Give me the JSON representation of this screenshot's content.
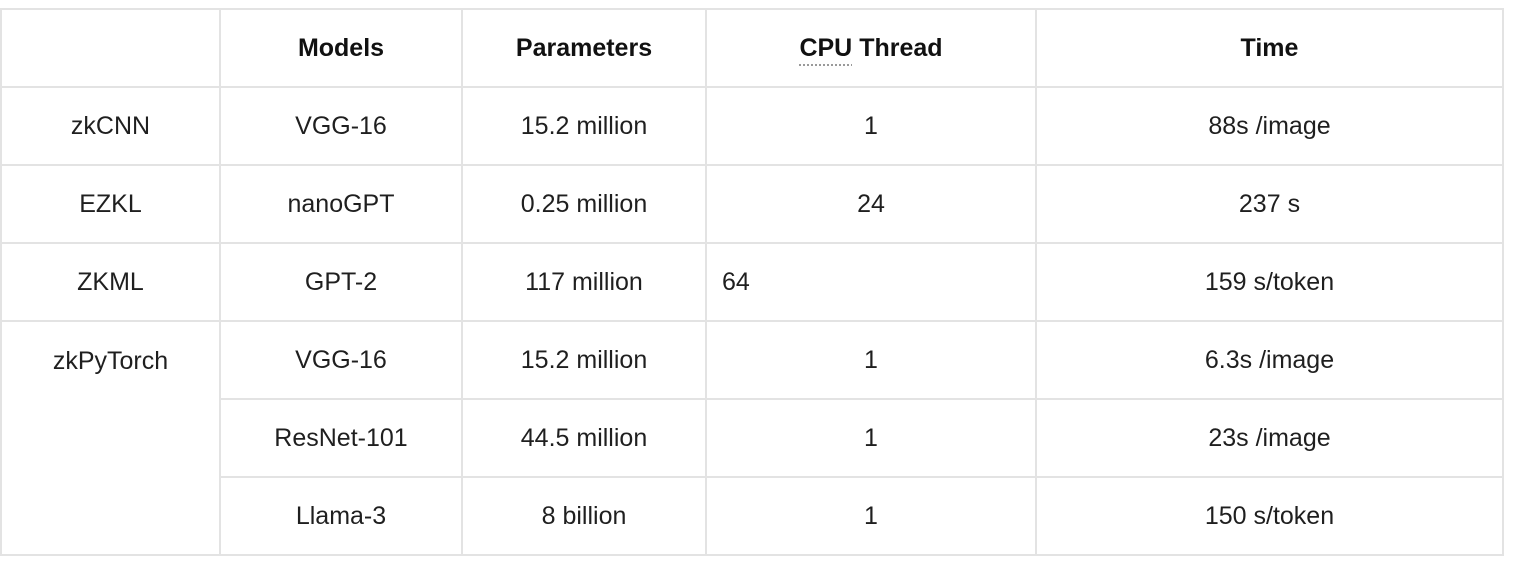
{
  "table": {
    "headers": {
      "org": "",
      "models": "Models",
      "parameters": "Parameters",
      "cpu_abbr": "CPU",
      "cpu_rest": " Thread",
      "time": "Time"
    },
    "rows": [
      {
        "org": "zkCNN",
        "model": "VGG-16",
        "params": "15.2 million",
        "cpu": "1",
        "time": "88s /image"
      },
      {
        "org": "EZKL",
        "model": "nanoGPT",
        "params": "0.25 million",
        "cpu": "24",
        "time": "237 s"
      },
      {
        "org": "ZKML",
        "model": "GPT-2",
        "params": "117 million",
        "cpu": "64",
        "time": "159 s/token"
      },
      {
        "org": "zkPyTorch",
        "model": "VGG-16",
        "params": "15.2 million",
        "cpu": "1",
        "time": "6.3s /image"
      },
      {
        "org": "",
        "model": "ResNet-101",
        "params": "44.5 million",
        "cpu": "1",
        "time": "23s /image"
      },
      {
        "org": "",
        "model": "Llama-3",
        "params": "8 billion",
        "cpu": "1",
        "time": "150 s/token"
      }
    ]
  }
}
